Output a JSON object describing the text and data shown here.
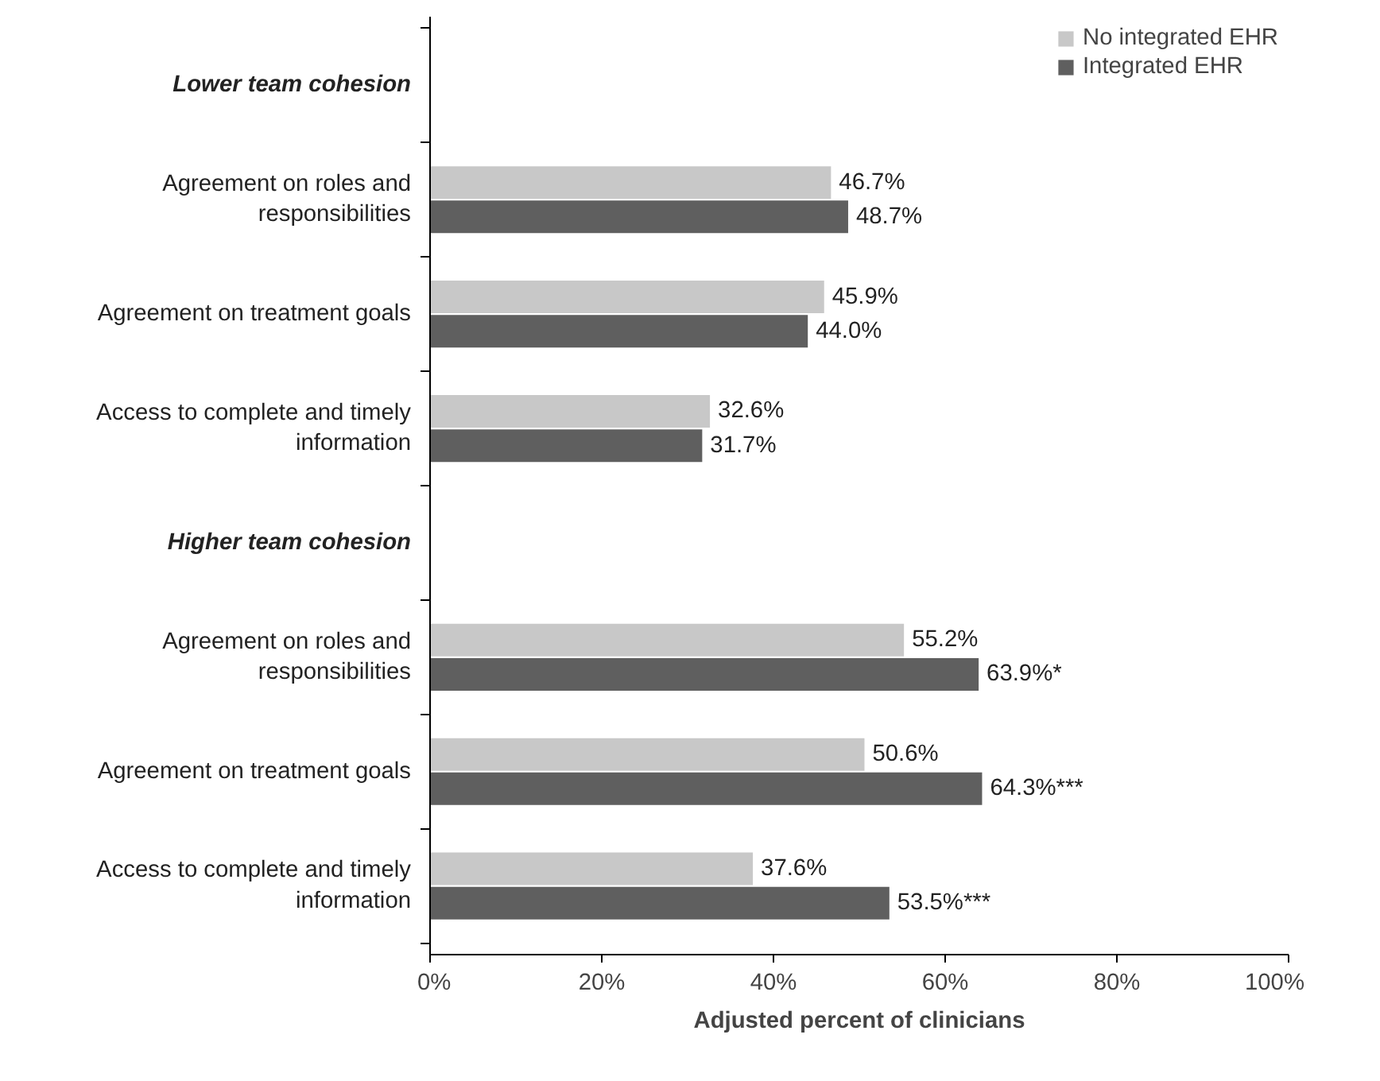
{
  "chart_data": {
    "type": "bar",
    "orientation": "horizontal",
    "xlabel": "Adjusted percent of clinicians",
    "categories": [
      "Lower team cohesion",
      "Agreement on roles and responsibilities",
      "Agreement on treatment goals",
      "Access to complete and timely information",
      "Higher team cohesion",
      "Agreement on roles and responsibilities",
      "Agreement on treatment goals",
      "Access to complete and timely information"
    ],
    "series": [
      {
        "name": "No integrated EHR",
        "color": "#c8c8c8",
        "values": [
          null,
          46.7,
          45.9,
          32.6,
          null,
          55.2,
          50.6,
          37.6
        ],
        "value_labels": [
          null,
          "46.7%",
          "45.9%",
          "32.6%",
          null,
          "55.2%",
          "50.6%",
          "37.6%"
        ]
      },
      {
        "name": "Integrated EHR",
        "color": "#5f5f5f",
        "values": [
          null,
          48.7,
          44.0,
          31.7,
          null,
          63.9,
          64.3,
          53.5
        ],
        "value_labels": [
          null,
          "48.7%",
          "44.0%",
          "31.7%",
          null,
          "63.9%*",
          "64.3%***",
          "53.5%***"
        ]
      }
    ],
    "xlim": [
      0,
      100
    ],
    "xticks": [
      {
        "value": 0,
        "label": "0%"
      },
      {
        "value": 20,
        "label": "20%"
      },
      {
        "value": 40,
        "label": "40%"
      },
      {
        "value": 60,
        "label": "60%"
      },
      {
        "value": 80,
        "label": "80%"
      },
      {
        "value": 100,
        "label": "100%"
      }
    ],
    "tick_labels": "x",
    "grid": false,
    "legend": "top right"
  }
}
